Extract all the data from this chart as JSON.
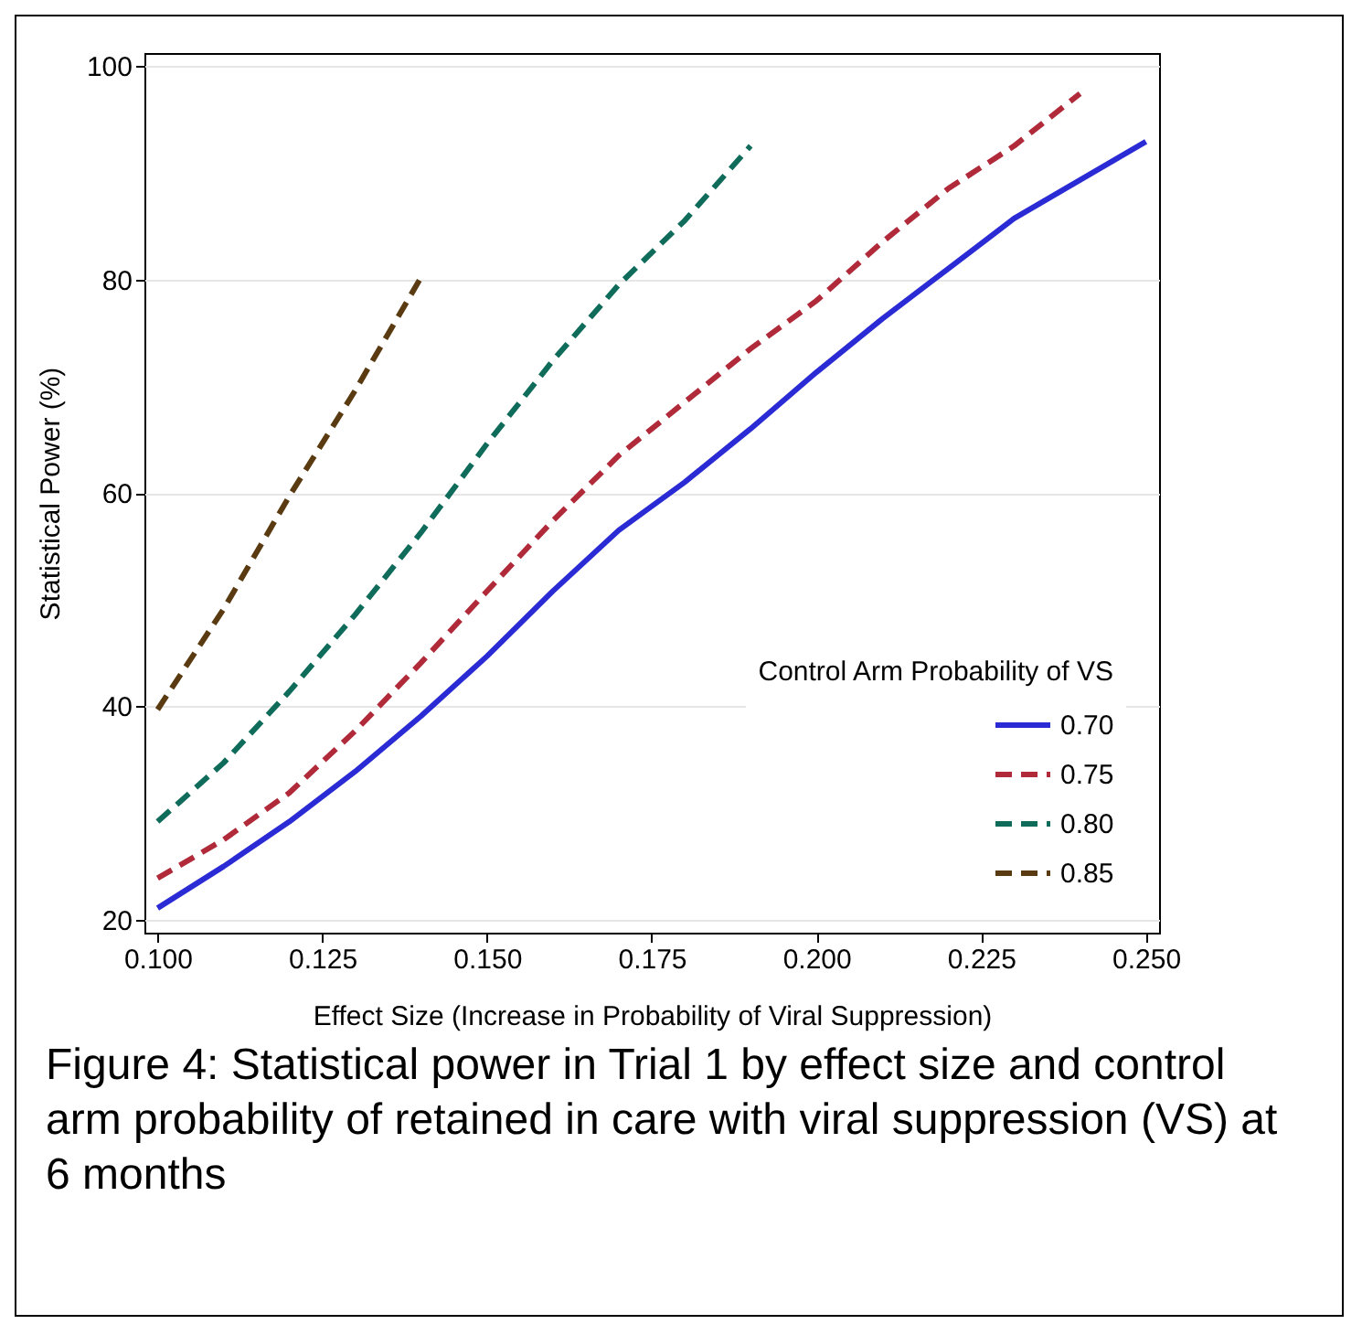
{
  "chart_data": {
    "type": "line",
    "xlabel": "Effect Size (Increase in Probability of Viral Suppression)",
    "ylabel": "Statistical Power (%)",
    "legend_title": "Control Arm Probability of VS",
    "legend": "bottom right",
    "grid": "y",
    "marker": "none",
    "annotations": [
      "Figure 4: Statistical power in Trial 1 by effect size and control arm probability of retained in care with viral suppression (VS) at 6 months"
    ],
    "xlim": [
      0.098,
      0.252
    ],
    "xticks": [
      {
        "value": 0.1,
        "label": "0.100"
      },
      {
        "value": 0.125,
        "label": "0.125"
      },
      {
        "value": 0.15,
        "label": "0.150"
      },
      {
        "value": 0.175,
        "label": "0.175"
      },
      {
        "value": 0.2,
        "label": "0.200"
      },
      {
        "value": 0.225,
        "label": "0.225"
      },
      {
        "value": 0.25,
        "label": "0.250"
      }
    ],
    "ylim": [
      18.8,
      101.2
    ],
    "yticks": [
      20,
      40,
      60,
      80,
      100
    ],
    "x": [
      0.1,
      0.11,
      0.12,
      0.13,
      0.14,
      0.15,
      0.16,
      0.17,
      0.18,
      0.19,
      0.2,
      0.21,
      0.22,
      0.23,
      0.24,
      0.25
    ],
    "series": [
      {
        "name": "0.70",
        "color": "#2b2bd6",
        "line_style": "solid",
        "values": [
          21.1,
          25,
          29.2,
          33.9,
          39.1,
          44.7,
          50.8,
          56.5,
          61,
          66,
          71.3,
          76.3,
          81,
          85.7,
          89.3,
          92.9
        ]
      },
      {
        "name": "0.75",
        "color": "#b02a3a",
        "line_style": "dashed",
        "values": [
          23.9,
          27.5,
          31.9,
          37.7,
          44.1,
          50.8,
          57.4,
          63.5,
          68.5,
          73.5,
          78,
          83.5,
          88.5,
          92.5,
          97.4,
          null
        ]
      },
      {
        "name": "0.80",
        "color": "#0f6b5a",
        "line_style": "dashed",
        "values": [
          29.2,
          34.7,
          41.4,
          48.6,
          56.3,
          64.6,
          72.4,
          79.5,
          85.5,
          92.5,
          null,
          null,
          null,
          null,
          null,
          null
        ]
      },
      {
        "name": "0.85",
        "color": "#5a3a10",
        "line_style": "dashed",
        "values": [
          39.7,
          49.1,
          59.7,
          69.6,
          80.2,
          null,
          null,
          null,
          null,
          null,
          null,
          null,
          null,
          null,
          null,
          null
        ]
      }
    ]
  }
}
